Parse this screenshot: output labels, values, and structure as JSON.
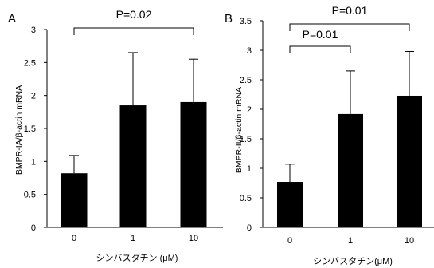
{
  "chart_data": [
    {
      "type": "bar",
      "panel": "A",
      "categories": [
        "0",
        "1",
        "10"
      ],
      "values": [
        0.82,
        1.85,
        1.9
      ],
      "error_upper": [
        0.27,
        0.8,
        0.65
      ],
      "ylabel": "BMPR-IA/β-actin mRNA",
      "xlabel": "シンバスタチン (μM)",
      "ylim": [
        0,
        3
      ],
      "yticks": [
        "0",
        "0.5",
        "1",
        "1.5",
        "2",
        "2.5",
        "3"
      ],
      "ytick_values": [
        0,
        0.5,
        1,
        1.5,
        2,
        2.5,
        3
      ],
      "significance": [
        {
          "from": 0,
          "to": 2,
          "label": "P=0.02"
        }
      ],
      "bar_color": "#000000",
      "grid": false
    },
    {
      "type": "bar",
      "panel": "B",
      "categories": [
        "0",
        "1",
        "10"
      ],
      "values": [
        0.77,
        1.92,
        2.23
      ],
      "error_upper": [
        0.3,
        0.73,
        0.75
      ],
      "ylabel": "BMPR-II/β-actin mRNA",
      "xlabel": "シンバスタチン(μM)",
      "ylim": [
        0,
        3.5
      ],
      "yticks": [
        "0",
        "0.5",
        "1",
        "1.5",
        "2",
        "2.5",
        "3",
        "3.5"
      ],
      "ytick_values": [
        0,
        0.5,
        1,
        1.5,
        2,
        2.5,
        3,
        3.5
      ],
      "significance": [
        {
          "from": 0,
          "to": 1,
          "label": "P=0.01"
        },
        {
          "from": 0,
          "to": 2,
          "label": "P=0.01"
        }
      ],
      "bar_color": "#000000",
      "grid": false
    }
  ]
}
